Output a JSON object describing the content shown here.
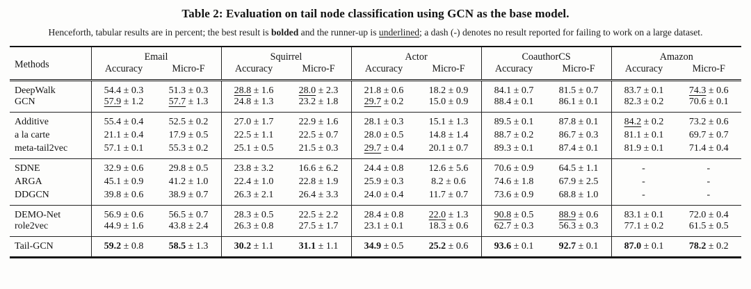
{
  "title": "Table 2: Evaluation on tail node classification using GCN as the base model.",
  "caption": {
    "part1": "Henceforth, tabular results are in percent; the best result is ",
    "bolded": "bolded",
    "part2": " and the runner-up is ",
    "underlined": "underlined",
    "part3": "; a dash (-) denotes no result reported for failing to work on a large dataset."
  },
  "table": {
    "methods_header": "Methods",
    "groups": [
      {
        "label": "Email",
        "sub": [
          "Accuracy",
          "Micro-F"
        ]
      },
      {
        "label": "Squirrel",
        "sub": [
          "Accuracy",
          "Micro-F"
        ]
      },
      {
        "label": "Actor",
        "sub": [
          "Accuracy",
          "Micro-F"
        ]
      },
      {
        "label": "CoauthorCS",
        "sub": [
          "Accuracy",
          "Micro-F"
        ]
      },
      {
        "label": "Amazon",
        "sub": [
          "Accuracy",
          "Micro-F"
        ]
      }
    ],
    "plus_minus": "±",
    "dash": "-",
    "row_groups": [
      {
        "rows": [
          {
            "method": "DeepWalk",
            "cells": [
              {
                "v": "54.4",
                "e": "0.3",
                "s": "n"
              },
              {
                "v": "51.3",
                "e": "0.3",
                "s": "n"
              },
              {
                "v": "28.8",
                "e": "1.6",
                "s": "u"
              },
              {
                "v": "28.0",
                "e": "2.3",
                "s": "u"
              },
              {
                "v": "21.8",
                "e": "0.6",
                "s": "n"
              },
              {
                "v": "18.2",
                "e": "0.9",
                "s": "n"
              },
              {
                "v": "84.1",
                "e": "0.7",
                "s": "n"
              },
              {
                "v": "81.5",
                "e": "0.7",
                "s": "n"
              },
              {
                "v": "83.7",
                "e": "0.1",
                "s": "n"
              },
              {
                "v": "74.3",
                "e": "0.6",
                "s": "u"
              }
            ]
          },
          {
            "method": "GCN",
            "cells": [
              {
                "v": "57.9",
                "e": "1.2",
                "s": "u"
              },
              {
                "v": "57.7",
                "e": "1.3",
                "s": "u"
              },
              {
                "v": "24.8",
                "e": "1.3",
                "s": "n"
              },
              {
                "v": "23.2",
                "e": "1.8",
                "s": "n"
              },
              {
                "v": "29.7",
                "e": "0.2",
                "s": "u"
              },
              {
                "v": "15.0",
                "e": "0.9",
                "s": "n"
              },
              {
                "v": "88.4",
                "e": "0.1",
                "s": "n"
              },
              {
                "v": "86.1",
                "e": "0.1",
                "s": "n"
              },
              {
                "v": "82.3",
                "e": "0.2",
                "s": "n"
              },
              {
                "v": "70.6",
                "e": "0.1",
                "s": "n"
              }
            ]
          }
        ]
      },
      {
        "rows": [
          {
            "method": "Additive",
            "cells": [
              {
                "v": "55.4",
                "e": "0.4",
                "s": "n"
              },
              {
                "v": "52.5",
                "e": "0.2",
                "s": "n"
              },
              {
                "v": "27.0",
                "e": "1.7",
                "s": "n"
              },
              {
                "v": "22.9",
                "e": "1.6",
                "s": "n"
              },
              {
                "v": "28.1",
                "e": "0.3",
                "s": "n"
              },
              {
                "v": "15.1",
                "e": "1.3",
                "s": "n"
              },
              {
                "v": "89.5",
                "e": "0.1",
                "s": "n"
              },
              {
                "v": "87.8",
                "e": "0.1",
                "s": "n"
              },
              {
                "v": "84.2",
                "e": "0.2",
                "s": "u"
              },
              {
                "v": "73.2",
                "e": "0.6",
                "s": "n"
              }
            ]
          },
          {
            "method": "a la carte",
            "cells": [
              {
                "v": "21.1",
                "e": "0.4",
                "s": "n"
              },
              {
                "v": "17.9",
                "e": "0.5",
                "s": "n"
              },
              {
                "v": "22.5",
                "e": "1.1",
                "s": "n"
              },
              {
                "v": "22.5",
                "e": "0.7",
                "s": "n"
              },
              {
                "v": "28.0",
                "e": "0.5",
                "s": "n"
              },
              {
                "v": "14.8",
                "e": "1.4",
                "s": "n"
              },
              {
                "v": "88.7",
                "e": "0.2",
                "s": "n"
              },
              {
                "v": "86.7",
                "e": "0.3",
                "s": "n"
              },
              {
                "v": "81.1",
                "e": "0.1",
                "s": "n"
              },
              {
                "v": "69.7",
                "e": "0.7",
                "s": "n"
              }
            ]
          },
          {
            "method": "meta-tail2vec",
            "cells": [
              {
                "v": "57.1",
                "e": "0.1",
                "s": "n"
              },
              {
                "v": "55.3",
                "e": "0.2",
                "s": "n"
              },
              {
                "v": "25.1",
                "e": "0.5",
                "s": "n"
              },
              {
                "v": "21.5",
                "e": "0.3",
                "s": "n"
              },
              {
                "v": "29.7",
                "e": "0.4",
                "s": "u"
              },
              {
                "v": "20.1",
                "e": "0.7",
                "s": "n"
              },
              {
                "v": "89.3",
                "e": "0.1",
                "s": "n"
              },
              {
                "v": "87.4",
                "e": "0.1",
                "s": "n"
              },
              {
                "v": "81.9",
                "e": "0.1",
                "s": "n"
              },
              {
                "v": "71.4",
                "e": "0.4",
                "s": "n"
              }
            ]
          }
        ]
      },
      {
        "rows": [
          {
            "method": "SDNE",
            "cells": [
              {
                "v": "32.9",
                "e": "0.6",
                "s": "n"
              },
              {
                "v": "29.8",
                "e": "0.5",
                "s": "n"
              },
              {
                "v": "23.8",
                "e": "3.2",
                "s": "n"
              },
              {
                "v": "16.6",
                "e": "6.2",
                "s": "n"
              },
              {
                "v": "24.4",
                "e": "0.8",
                "s": "n"
              },
              {
                "v": "12.6",
                "e": "5.6",
                "s": "n"
              },
              {
                "v": "70.6",
                "e": "0.9",
                "s": "n"
              },
              {
                "v": "64.5",
                "e": "1.1",
                "s": "n"
              },
              {
                "dash": true
              },
              {
                "dash": true
              }
            ]
          },
          {
            "method": "ARGA",
            "cells": [
              {
                "v": "45.1",
                "e": "0.9",
                "s": "n"
              },
              {
                "v": "41.2",
                "e": "1.0",
                "s": "n"
              },
              {
                "v": "22.4",
                "e": "1.0",
                "s": "n"
              },
              {
                "v": "22.8",
                "e": "1.9",
                "s": "n"
              },
              {
                "v": "25.9",
                "e": "0.3",
                "s": "n"
              },
              {
                "v": "8.2",
                "e": "0.6",
                "s": "n"
              },
              {
                "v": "74.6",
                "e": "1.8",
                "s": "n"
              },
              {
                "v": "67.9",
                "e": "2.5",
                "s": "n"
              },
              {
                "dash": true
              },
              {
                "dash": true
              }
            ]
          },
          {
            "method": "DDGCN",
            "cells": [
              {
                "v": "39.8",
                "e": "0.6",
                "s": "n"
              },
              {
                "v": "38.9",
                "e": "0.7",
                "s": "n"
              },
              {
                "v": "26.3",
                "e": "2.1",
                "s": "n"
              },
              {
                "v": "26.4",
                "e": "3.3",
                "s": "n"
              },
              {
                "v": "24.0",
                "e": "0.4",
                "s": "n"
              },
              {
                "v": "11.7",
                "e": "0.7",
                "s": "n"
              },
              {
                "v": "73.6",
                "e": "0.9",
                "s": "n"
              },
              {
                "v": "68.8",
                "e": "1.0",
                "s": "n"
              },
              {
                "dash": true
              },
              {
                "dash": true
              }
            ]
          }
        ]
      },
      {
        "rows": [
          {
            "method": "DEMO-Net",
            "cells": [
              {
                "v": "56.9",
                "e": "0.6",
                "s": "n"
              },
              {
                "v": "56.5",
                "e": "0.7",
                "s": "n"
              },
              {
                "v": "28.3",
                "e": "0.5",
                "s": "n"
              },
              {
                "v": "22.5",
                "e": "2.2",
                "s": "n"
              },
              {
                "v": "28.4",
                "e": "0.8",
                "s": "n"
              },
              {
                "v": "22.0",
                "e": "1.3",
                "s": "u"
              },
              {
                "v": "90.8",
                "e": "0.5",
                "s": "u"
              },
              {
                "v": "88.9",
                "e": "0.6",
                "s": "u"
              },
              {
                "v": "83.1",
                "e": "0.1",
                "s": "n"
              },
              {
                "v": "72.0",
                "e": "0.4",
                "s": "n"
              }
            ]
          },
          {
            "method": "role2vec",
            "cells": [
              {
                "v": "44.9",
                "e": "1.6",
                "s": "n"
              },
              {
                "v": "43.8",
                "e": "2.4",
                "s": "n"
              },
              {
                "v": "26.3",
                "e": "0.8",
                "s": "n"
              },
              {
                "v": "27.5",
                "e": "1.7",
                "s": "n"
              },
              {
                "v": "23.1",
                "e": "0.1",
                "s": "n"
              },
              {
                "v": "18.3",
                "e": "0.6",
                "s": "n"
              },
              {
                "v": "62.7",
                "e": "0.3",
                "s": "n"
              },
              {
                "v": "56.3",
                "e": "0.3",
                "s": "n"
              },
              {
                "v": "77.1",
                "e": "0.2",
                "s": "n"
              },
              {
                "v": "61.5",
                "e": "0.5",
                "s": "n"
              }
            ]
          }
        ]
      },
      {
        "rows": [
          {
            "method": "Tail-GCN",
            "cells": [
              {
                "v": "59.2",
                "e": "0.8",
                "s": "b"
              },
              {
                "v": "58.5",
                "e": "1.3",
                "s": "b"
              },
              {
                "v": "30.2",
                "e": "1.1",
                "s": "b"
              },
              {
                "v": "31.1",
                "e": "1.1",
                "s": "b"
              },
              {
                "v": "34.9",
                "e": "0.5",
                "s": "b"
              },
              {
                "v": "25.2",
                "e": "0.6",
                "s": "b"
              },
              {
                "v": "93.6",
                "e": "0.1",
                "s": "b"
              },
              {
                "v": "92.7",
                "e": "0.1",
                "s": "b"
              },
              {
                "v": "87.0",
                "e": "0.1",
                "s": "b"
              },
              {
                "v": "78.2",
                "e": "0.2",
                "s": "b"
              }
            ]
          }
        ]
      }
    ]
  }
}
